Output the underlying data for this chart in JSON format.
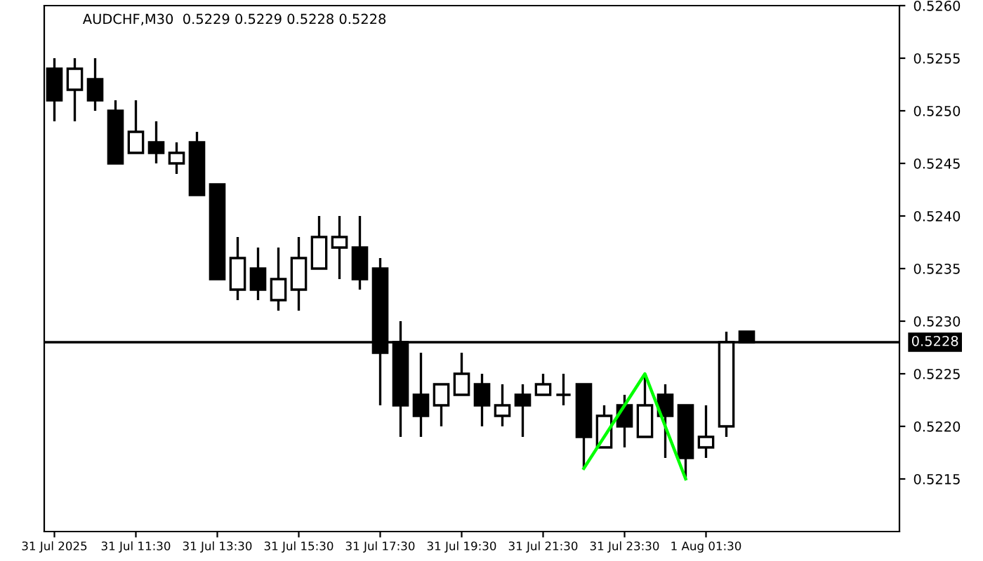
{
  "chart_data": {
    "type": "candlestick",
    "title": "AUDCHF,M30  0.5229 0.5229 0.5228 0.5228",
    "categories": [
      "31 Jul 2025",
      null,
      null,
      null,
      "31 Jul 11:30",
      null,
      null,
      null,
      "31 Jul 13:30",
      null,
      null,
      null,
      "31 Jul 15:30",
      null,
      null,
      null,
      "31 Jul 17:30",
      null,
      null,
      null,
      "31 Jul 19:30",
      null,
      null,
      null,
      "31 Jul 21:30",
      null,
      null,
      null,
      "31 Jul 23:30",
      null,
      null,
      null,
      "1 Aug 01:30",
      null,
      null,
      null,
      null,
      null,
      null,
      null,
      null,
      null
    ],
    "ohlc": [
      [
        0.5254,
        0.5255,
        0.5249,
        0.5251
      ],
      [
        0.5252,
        0.5255,
        0.5249,
        0.5254
      ],
      [
        0.5253,
        0.5255,
        0.525,
        0.5251
      ],
      [
        0.525,
        0.5251,
        0.5245,
        0.5245
      ],
      [
        0.5246,
        0.5251,
        0.5246,
        0.5248
      ],
      [
        0.5247,
        0.5249,
        0.5245,
        0.5246
      ],
      [
        0.5245,
        0.5247,
        0.5244,
        0.5246
      ],
      [
        0.5247,
        0.5248,
        0.5242,
        0.5242
      ],
      [
        0.5243,
        0.5243,
        0.5234,
        0.5234
      ],
      [
        0.5233,
        0.5238,
        0.5232,
        0.5236
      ],
      [
        0.5235,
        0.5237,
        0.5232,
        0.5233
      ],
      [
        0.5232,
        0.5237,
        0.5231,
        0.5234
      ],
      [
        0.5233,
        0.5238,
        0.5231,
        0.5236
      ],
      [
        0.5235,
        0.524,
        0.5235,
        0.5238
      ],
      [
        0.5237,
        0.524,
        0.5234,
        0.5238
      ],
      [
        0.5237,
        0.524,
        0.5233,
        0.5234
      ],
      [
        0.5235,
        0.5236,
        0.5222,
        0.5227
      ],
      [
        0.5228,
        0.523,
        0.5219,
        0.5222
      ],
      [
        0.5223,
        0.5227,
        0.5219,
        0.5221
      ],
      [
        0.5222,
        0.5224,
        0.522,
        0.5224
      ],
      [
        0.5223,
        0.5227,
        0.5223,
        0.5225
      ],
      [
        0.5224,
        0.5225,
        0.522,
        0.5222
      ],
      [
        0.5221,
        0.5224,
        0.522,
        0.5222
      ],
      [
        0.5223,
        0.5224,
        0.5219,
        0.5222
      ],
      [
        0.5223,
        0.5225,
        0.5223,
        0.5224
      ],
      [
        0.5223,
        0.5225,
        0.5222,
        0.5223
      ],
      [
        0.5224,
        0.5224,
        0.5216,
        0.5219
      ],
      [
        0.5218,
        0.5222,
        0.5218,
        0.5221
      ],
      [
        0.5222,
        0.5223,
        0.5218,
        0.522
      ],
      [
        0.5219,
        0.5225,
        0.5219,
        0.5222
      ],
      [
        0.5223,
        0.5224,
        0.5217,
        0.5221
      ],
      [
        0.5222,
        0.5222,
        0.5215,
        0.5217
      ],
      [
        0.5218,
        0.5222,
        0.5217,
        0.5219
      ],
      [
        0.522,
        0.5229,
        0.5219,
        0.5228
      ],
      [
        0.5229,
        0.5229,
        0.5228,
        0.5228
      ],
      null,
      null,
      null,
      null,
      null,
      null,
      null
    ],
    "series": [
      {
        "type": "line",
        "color": "#00ff00",
        "values": [
          null,
          null,
          null,
          null,
          null,
          null,
          null,
          null,
          null,
          null,
          null,
          null,
          null,
          null,
          null,
          null,
          null,
          null,
          null,
          null,
          null,
          null,
          null,
          null,
          null,
          null,
          0.5216,
          null,
          null,
          0.5225,
          null,
          0.5215,
          null,
          null,
          null,
          null,
          null,
          null,
          null,
          null,
          null,
          null
        ]
      }
    ],
    "ylim": [
      0.521,
      0.526
    ],
    "yticks": [
      0.5215,
      {
        "value": 0.522,
        "label": "0.5220"
      },
      0.5225,
      {
        "value": 0.523,
        "label": "0.5230"
      },
      0.5235,
      {
        "value": 0.524,
        "label": "0.5240"
      },
      0.5245,
      {
        "value": 0.525,
        "label": "0.5250"
      },
      0.5255,
      {
        "value": 0.526,
        "label": "0.5260"
      }
    ],
    "ref_lines": [
      {
        "axis": "y",
        "value": 0.5228,
        "label": "0.5228",
        "color": "#000000"
      }
    ],
    "grid": false,
    "legend": false
  }
}
